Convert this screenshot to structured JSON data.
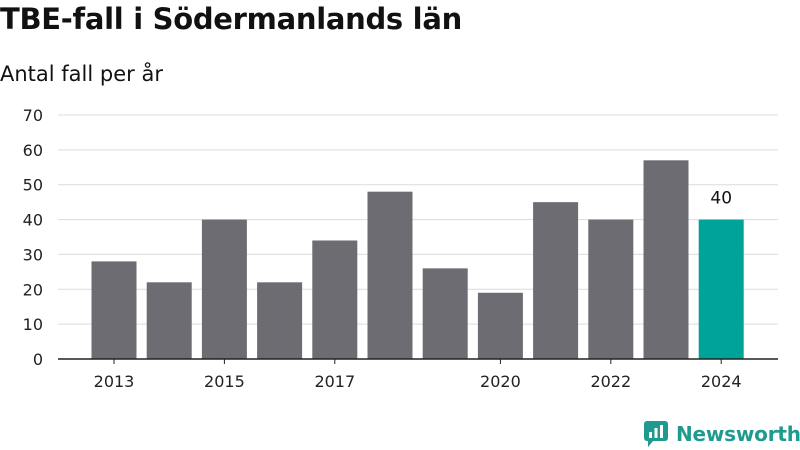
{
  "header": {
    "title": "TBE-fall i Södermanlands län",
    "subtitle": "Antal fall per år"
  },
  "brand": {
    "name": "Newsworthy",
    "icon": "newsworthy-logo-icon",
    "color": "#1f9a8e"
  },
  "chart_data": {
    "type": "bar",
    "categories": [
      "2013",
      "2014",
      "2015",
      "2016",
      "2017",
      "2018",
      "2019",
      "2020",
      "2021",
      "2022",
      "2023",
      "2024"
    ],
    "values": [
      28,
      22,
      40,
      22,
      34,
      48,
      26,
      19,
      45,
      40,
      57,
      40
    ],
    "x_tick_labels": [
      "2013",
      "2015",
      "2017",
      "2020",
      "2022",
      "2024"
    ],
    "y_ticks": [
      0,
      10,
      20,
      30,
      40,
      50,
      60,
      70
    ],
    "ylim": [
      0,
      70
    ],
    "grid": true,
    "highlight": {
      "category": "2024",
      "label": "40",
      "color": "#00a39a"
    },
    "bar_color": "#6d6c72"
  }
}
